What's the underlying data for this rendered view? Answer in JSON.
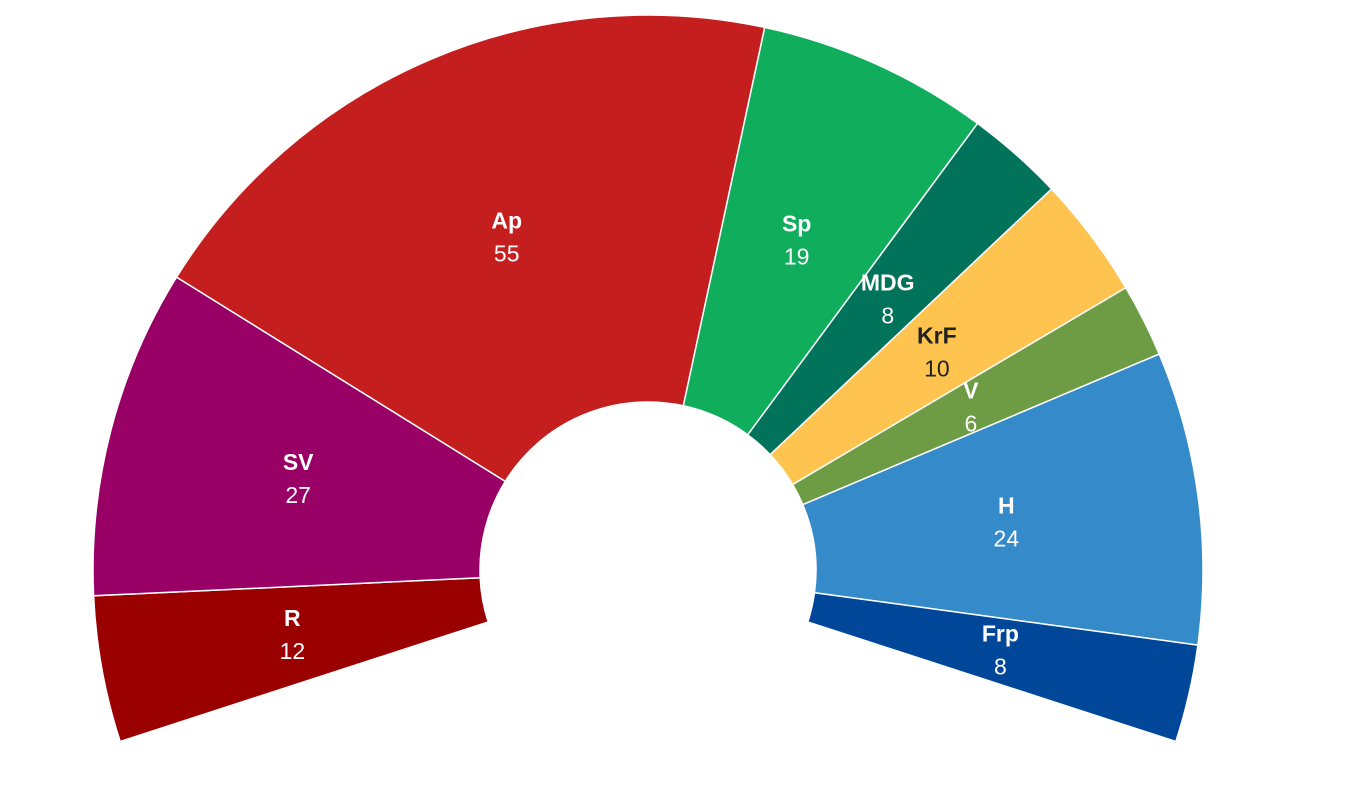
{
  "chart_data": {
    "type": "donut",
    "categories": [
      "R",
      "SV",
      "Ap",
      "Sp",
      "MDG",
      "KrF",
      "V",
      "H",
      "Frp"
    ],
    "values": [
      12,
      27,
      55,
      19,
      8,
      10,
      6,
      24,
      8
    ],
    "colors": [
      "#9b0000",
      "#990066",
      "#c41e1e",
      "#10ae5c",
      "#00735a",
      "#ffc44f",
      "#6e9c44",
      "#358ac9",
      "#00479a"
    ]
  }
}
